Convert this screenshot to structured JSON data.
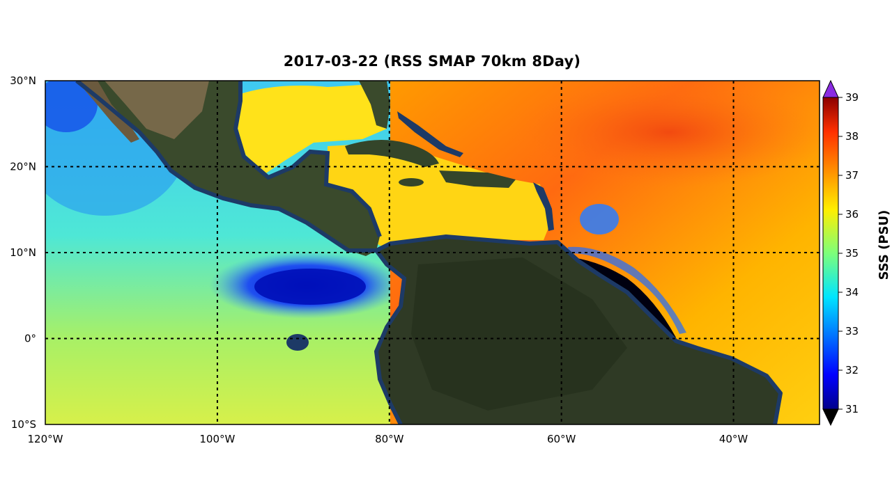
{
  "title": "2017-03-22 (RSS SMAP 70km 8Day)",
  "map": {
    "lat_ticks": [
      "30°N",
      "20°N",
      "10°N",
      "0°",
      "10°S"
    ],
    "lon_ticks": [
      "120°W",
      "100°W",
      "80°W",
      "60°W",
      "40°W"
    ],
    "lat_values": [
      30,
      20,
      10,
      0,
      -10
    ],
    "lon_values": [
      -120,
      -100,
      -80,
      -60,
      -40
    ],
    "extent": {
      "lon_min": -120,
      "lon_max": -30,
      "lat_min": -10,
      "lat_max": 30
    },
    "gridlines": "dotted black",
    "colors": {
      "land": "#2f3a25",
      "land_desert": "#7a6a4a",
      "coast_mask": "#1d3a66"
    }
  },
  "colorbar": {
    "label": "SSS (PSU)",
    "ticks": [
      "31",
      "32",
      "33",
      "34",
      "35",
      "36",
      "37",
      "38",
      "39"
    ],
    "min": 31,
    "max": 39,
    "extend": "both",
    "colormap": "jet",
    "over_color": "#8a2be2",
    "under_color": "#000000"
  }
}
